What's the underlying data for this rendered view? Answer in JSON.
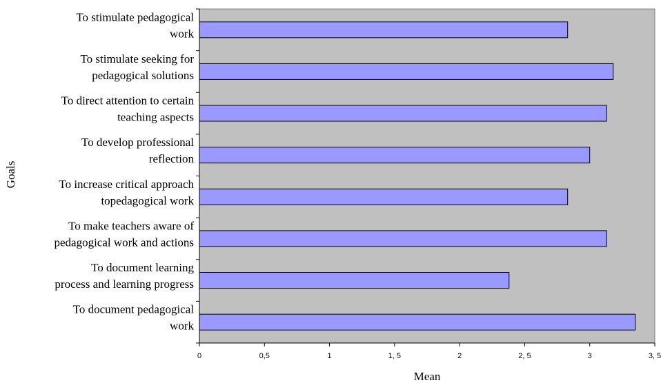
{
  "chart_data": {
    "type": "bar",
    "orientation": "horizontal",
    "xlabel": "Mean",
    "ylabel": "Goals",
    "xlim": [
      0,
      3.5
    ],
    "x_ticks": [
      "0",
      "0,5",
      "1",
      "1, 5",
      "2",
      "2, 5",
      "3",
      "3, 5"
    ],
    "grid": false,
    "plot_background": "#c0c0c0",
    "bar_color": "#9999ff",
    "bar_edge_color": "#000000",
    "categories": [
      {
        "lines": [
          "To stimulate pedagogical",
          "work"
        ]
      },
      {
        "lines": [
          "To stimulate seeking for",
          "pedagogical solutions"
        ]
      },
      {
        "lines": [
          "To direct attention to certain",
          "teaching aspects"
        ]
      },
      {
        "lines": [
          "To develop professional",
          "reflection"
        ]
      },
      {
        "lines": [
          "To increase critical approach",
          "topedagogical work"
        ]
      },
      {
        "lines": [
          "To make teachers aware of",
          "pedagogical work and actions"
        ]
      },
      {
        "lines": [
          "To document learning",
          "process and learning progress"
        ]
      },
      {
        "lines": [
          "To document pedagogical",
          "work"
        ]
      }
    ],
    "values": [
      2.83,
      3.18,
      3.13,
      3.0,
      2.83,
      3.13,
      2.38,
      3.35
    ]
  }
}
